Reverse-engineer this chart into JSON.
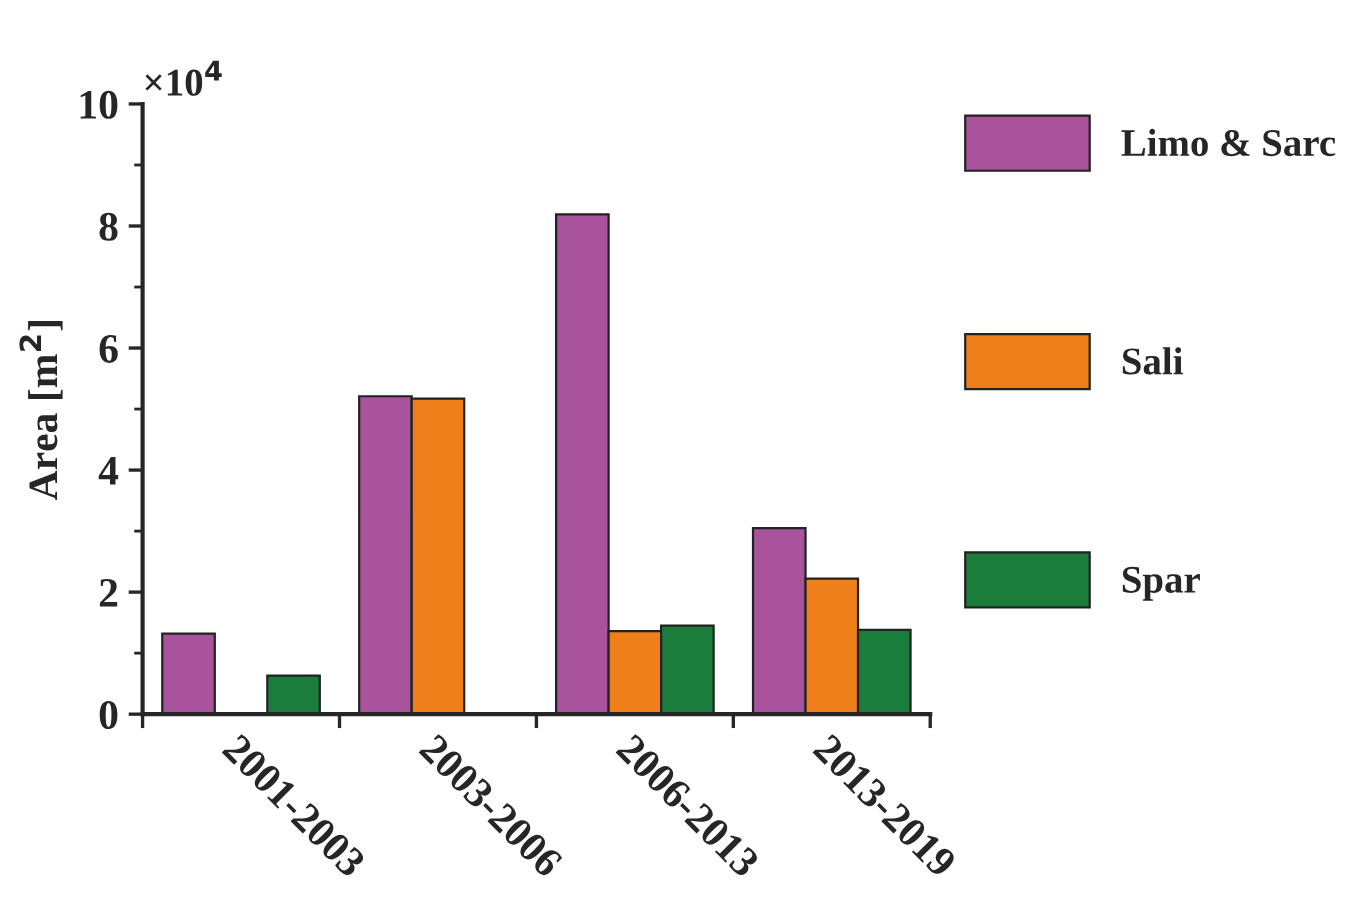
{
  "chart_data": {
    "type": "bar",
    "ylabel": "Area [m$^{2}$]",
    "annotations": [
      "×10$^{4}$"
    ],
    "categories": [
      "2001-2003",
      "2003-2006",
      "2006-2013",
      "2013-2019"
    ],
    "series": [
      {
        "name": "Limo & Sarc",
        "color": "#a8539b",
        "values": [
          1.32,
          5.21,
          8.19,
          3.05
        ]
      },
      {
        "name": "Sali",
        "color": "#ef7f1a",
        "values": [
          null,
          5.17,
          1.36,
          2.22
        ]
      },
      {
        "name": "Spar",
        "color": "#1a7d3c",
        "values": [
          0.63,
          null,
          1.45,
          1.38
        ]
      }
    ],
    "ylim": [
      0,
      10
    ],
    "yticks": [
      0,
      2,
      4,
      6,
      8,
      10
    ],
    "grid": false,
    "legend": "right"
  }
}
